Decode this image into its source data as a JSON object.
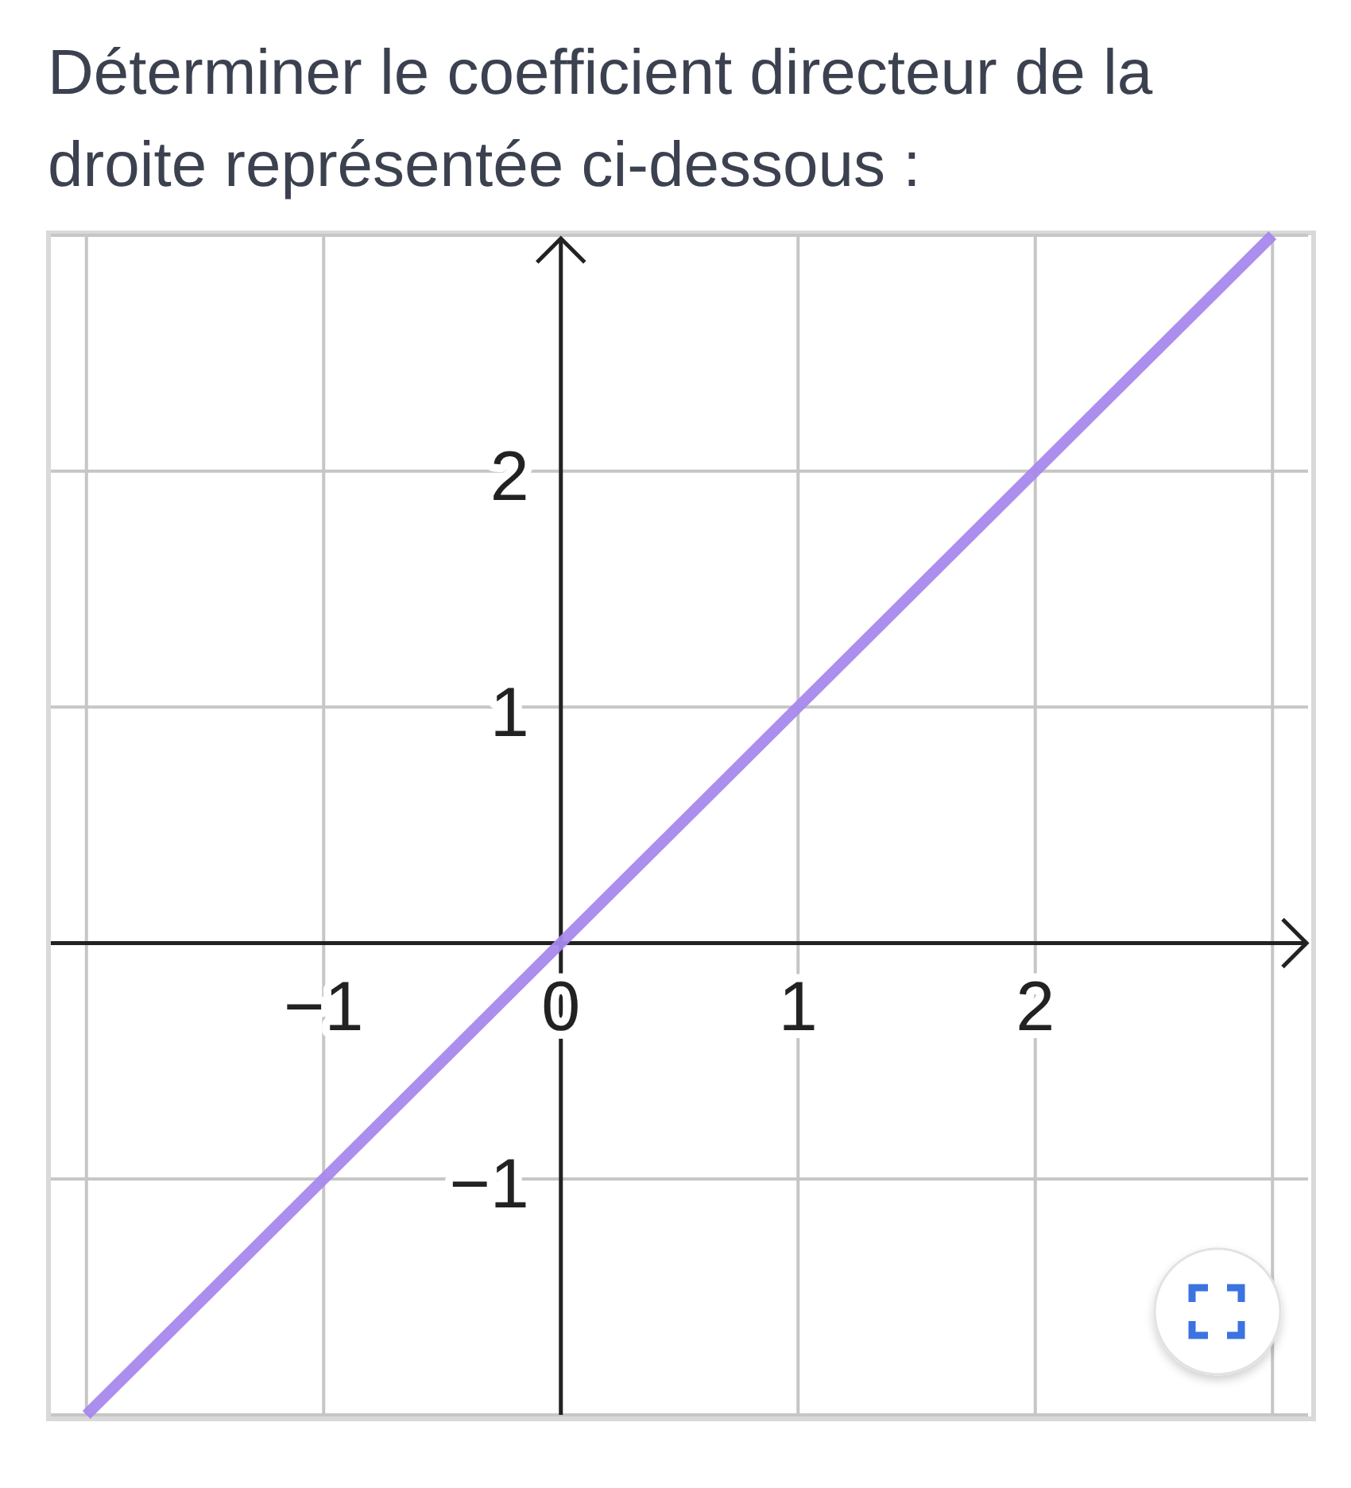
{
  "chart_data": {
    "type": "line",
    "title": "Déterminer le coefficient directeur de la droite représentée ci-dessous :",
    "x": [
      -2,
      3
    ],
    "series": [
      {
        "color": "#a688ec",
        "values": [
          -2,
          3
        ]
      }
    ],
    "xlim": [
      -2.15,
      3.15
    ],
    "ylim": [
      -2,
      3
    ],
    "xticks": [
      {
        "value": -2,
        "label": null
      },
      {
        "value": -1,
        "label": "−1"
      },
      0,
      1,
      2,
      {
        "value": 3,
        "label": null
      }
    ],
    "yticks": [
      {
        "value": -2,
        "label": null
      },
      {
        "value": -1,
        "label": "−1"
      },
      {
        "value": 0,
        "label": null
      },
      1,
      2,
      {
        "value": 3,
        "label": null
      }
    ],
    "grid": true,
    "line_style": "solid"
  }
}
